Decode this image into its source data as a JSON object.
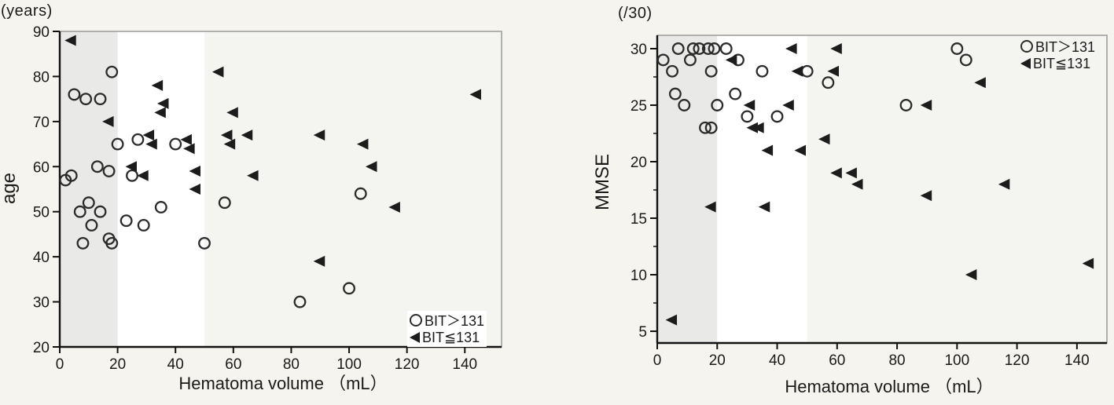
{
  "colors": {
    "background": "#f6f4ee",
    "frame": "#9a9a9a",
    "axis": "#111111",
    "text": "#1a1a1a",
    "marker_stroke": "#2b2b2b",
    "triangle_fill": "#1c1c1c",
    "band_gray": "#e9e9e8",
    "band_white": "#ffffff",
    "band_light": "#f4f4f1"
  },
  "chart_data": [
    {
      "type": "scatter",
      "title": "(years)",
      "ylabel": "age",
      "xlabel": "Hematoma volume （mL）",
      "x_ticks": [
        0,
        20,
        40,
        60,
        80,
        100,
        120,
        140
      ],
      "y_ticks": [
        20,
        30,
        40,
        50,
        60,
        70,
        80,
        90
      ],
      "y_minor_ticks": [],
      "xlim": [
        0,
        152.7
      ],
      "ylim": [
        20,
        90
      ],
      "grid": false,
      "bands": [
        {
          "from": 0,
          "to": 20,
          "color": "#e9e9e8"
        },
        {
          "from": 20,
          "to": 50,
          "color": "#ffffff"
        },
        {
          "from": 50,
          "to": 152.7,
          "color": "#f4f4f1"
        }
      ],
      "legend": {
        "position": "bottom-right",
        "items": [
          {
            "marker": "circle",
            "label": "BIT＞131"
          },
          {
            "marker": "triangle",
            "label": "BIT≦131"
          }
        ]
      },
      "series": [
        {
          "name": "BIT＞131",
          "marker": "circle",
          "points": [
            [
              18,
              81
            ],
            [
              5,
              76
            ],
            [
              9,
              75
            ],
            [
              14,
              75
            ],
            [
              27,
              66
            ],
            [
              20,
              65
            ],
            [
              40,
              65
            ],
            [
              13,
              60
            ],
            [
              17,
              59
            ],
            [
              2,
              57
            ],
            [
              4,
              58
            ],
            [
              25,
              58
            ],
            [
              35,
              51
            ],
            [
              10,
              52
            ],
            [
              7,
              50
            ],
            [
              14,
              50
            ],
            [
              23,
              48
            ],
            [
              11,
              47
            ],
            [
              29,
              47
            ],
            [
              17,
              44
            ],
            [
              8,
              43
            ],
            [
              18,
              43
            ],
            [
              50,
              43
            ],
            [
              57,
              52
            ],
            [
              104,
              54
            ],
            [
              100,
              33
            ],
            [
              83,
              30
            ]
          ]
        },
        {
          "name": "BIT≦131",
          "marker": "triangle",
          "points": [
            [
              4,
              88
            ],
            [
              55,
              81
            ],
            [
              34,
              78
            ],
            [
              144,
              76
            ],
            [
              36,
              74
            ],
            [
              35,
              72
            ],
            [
              60,
              72
            ],
            [
              17,
              70
            ],
            [
              31,
              67
            ],
            [
              58,
              67
            ],
            [
              65,
              67
            ],
            [
              90,
              67
            ],
            [
              44,
              66
            ],
            [
              32,
              65
            ],
            [
              59,
              65
            ],
            [
              105,
              65
            ],
            [
              45,
              64
            ],
            [
              25,
              60
            ],
            [
              108,
              60
            ],
            [
              47,
              59
            ],
            [
              29,
              58
            ],
            [
              67,
              58
            ],
            [
              47,
              55
            ],
            [
              116,
              51
            ],
            [
              90,
              39
            ]
          ]
        }
      ]
    },
    {
      "type": "scatter",
      "title": "(/30)",
      "ylabel": "MMSE",
      "xlabel": "Hematoma volume （mL）",
      "x_ticks": [
        0,
        20,
        40,
        60,
        80,
        100,
        120,
        140
      ],
      "y_ticks": [
        5,
        10,
        15,
        20,
        25,
        30
      ],
      "y_minor_ticks": [
        7.5,
        12.5,
        17.5,
        22.5,
        27.5
      ],
      "xlim": [
        0,
        150
      ],
      "ylim": [
        3.96,
        31.18
      ],
      "grid": false,
      "bands": [
        {
          "from": 0,
          "to": 20,
          "color": "#e9e9e8"
        },
        {
          "from": 20,
          "to": 50,
          "color": "#ffffff"
        },
        {
          "from": 50,
          "to": 150,
          "color": "#f4f4f1"
        }
      ],
      "legend": {
        "position": "top-right",
        "items": [
          {
            "marker": "circle",
            "label": "BIT＞131"
          },
          {
            "marker": "triangle",
            "label": "BIT≦131"
          }
        ]
      },
      "series": [
        {
          "name": "BIT＞131",
          "marker": "circle",
          "points": [
            [
              7,
              30
            ],
            [
              12,
              30
            ],
            [
              14,
              30
            ],
            [
              17,
              30
            ],
            [
              19,
              30
            ],
            [
              23,
              30
            ],
            [
              100,
              30
            ],
            [
              2,
              29
            ],
            [
              11,
              29
            ],
            [
              27,
              29
            ],
            [
              103,
              29
            ],
            [
              5,
              28
            ],
            [
              18,
              28
            ],
            [
              35,
              28
            ],
            [
              50,
              28
            ],
            [
              57,
              27
            ],
            [
              6,
              26
            ],
            [
              26,
              26
            ],
            [
              9,
              25
            ],
            [
              20,
              25
            ],
            [
              83,
              25
            ],
            [
              30,
              24
            ],
            [
              40,
              24
            ],
            [
              16,
              23
            ],
            [
              18,
              23
            ]
          ]
        },
        {
          "name": "BIT≦131",
          "marker": "triangle",
          "points": [
            [
              45,
              30
            ],
            [
              60,
              30
            ],
            [
              25,
              29
            ],
            [
              47,
              28
            ],
            [
              59,
              28
            ],
            [
              108,
              27
            ],
            [
              31,
              25
            ],
            [
              44,
              25
            ],
            [
              90,
              25
            ],
            [
              32,
              23
            ],
            [
              34,
              23
            ],
            [
              56,
              22
            ],
            [
              37,
              21
            ],
            [
              48,
              21
            ],
            [
              60,
              19
            ],
            [
              65,
              19
            ],
            [
              67,
              18
            ],
            [
              116,
              18
            ],
            [
              90,
              17
            ],
            [
              18,
              16
            ],
            [
              36,
              16
            ],
            [
              144,
              11
            ],
            [
              105,
              10
            ],
            [
              5,
              6
            ]
          ]
        }
      ]
    }
  ]
}
